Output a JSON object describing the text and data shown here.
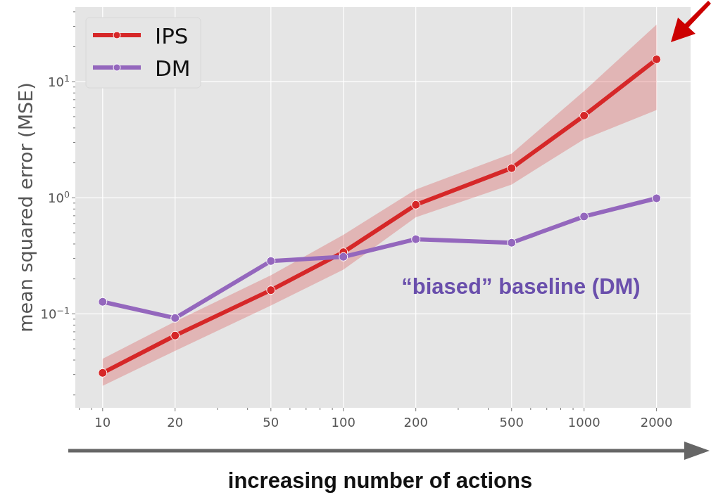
{
  "chart_data": {
    "type": "line",
    "xlabel": "increasing number of actions",
    "ylabel": "mean squared error (MSE)",
    "log": "xy",
    "grid": true,
    "legend": "top left",
    "marker": "circle",
    "line_style": "solid",
    "x": [
      10,
      20,
      50,
      100,
      200,
      500,
      1000,
      2000
    ],
    "xlim": [
      7.7,
      2770
    ],
    "ylim": [
      0.0155,
      44
    ],
    "xticks": [
      {
        "value": 8,
        "label": null
      },
      {
        "value": 9,
        "label": null
      },
      10,
      20,
      {
        "value": 30,
        "label": null
      },
      {
        "value": 40,
        "label": null
      },
      50,
      {
        "value": 60,
        "label": null
      },
      {
        "value": 70,
        "label": null
      },
      {
        "value": 80,
        "label": null
      },
      {
        "value": 90,
        "label": null
      },
      100,
      200,
      {
        "value": 300,
        "label": null
      },
      {
        "value": 400,
        "label": null
      },
      500,
      {
        "value": 600,
        "label": null
      },
      {
        "value": 700,
        "label": null
      },
      {
        "value": 800,
        "label": null
      },
      {
        "value": 900,
        "label": null
      },
      1000,
      2000
    ],
    "yticks": [
      {
        "value": 0.02,
        "label": null
      },
      {
        "value": 0.03,
        "label": null
      },
      {
        "value": 0.04,
        "label": null
      },
      {
        "value": 0.05,
        "label": null
      },
      {
        "value": 0.06,
        "label": null
      },
      {
        "value": 0.07,
        "label": null
      },
      {
        "value": 0.08,
        "label": null
      },
      {
        "value": 0.09,
        "label": null
      },
      {
        "value": 0.1,
        "label": "10$^{−1}$"
      },
      {
        "value": 0.2,
        "label": null
      },
      {
        "value": 0.3,
        "label": null
      },
      {
        "value": 0.4,
        "label": null
      },
      {
        "value": 0.5,
        "label": null
      },
      {
        "value": 0.6,
        "label": null
      },
      {
        "value": 0.7,
        "label": null
      },
      {
        "value": 0.8,
        "label": null
      },
      {
        "value": 0.9,
        "label": null
      },
      {
        "value": 1,
        "label": "10$^{0}$"
      },
      {
        "value": 2,
        "label": null
      },
      {
        "value": 3,
        "label": null
      },
      {
        "value": 4,
        "label": null
      },
      {
        "value": 5,
        "label": null
      },
      {
        "value": 6,
        "label": null
      },
      {
        "value": 7,
        "label": null
      },
      {
        "value": 8,
        "label": null
      },
      {
        "value": 9,
        "label": null
      },
      {
        "value": 10,
        "label": "10$^{1}$"
      },
      {
        "value": 20,
        "label": null
      },
      {
        "value": 30,
        "label": null
      },
      {
        "value": 40,
        "label": null
      }
    ],
    "series": [
      {
        "name": "IPS",
        "color": "#d62728",
        "values": [
          0.031,
          0.065,
          0.16,
          0.34,
          0.87,
          1.8,
          5.1,
          15.6
        ],
        "lower": [
          0.024,
          0.048,
          0.118,
          0.24,
          0.68,
          1.3,
          3.2,
          5.7
        ],
        "upper": [
          0.041,
          0.086,
          0.215,
          0.48,
          1.18,
          2.4,
          8.3,
          31
        ]
      },
      {
        "name": "DM",
        "color": "#9467bd",
        "values": [
          0.127,
          0.092,
          0.285,
          0.31,
          0.44,
          0.41,
          0.69,
          0.99
        ]
      }
    ],
    "annotations": [
      "“biased” baseline (DM)"
    ]
  }
}
